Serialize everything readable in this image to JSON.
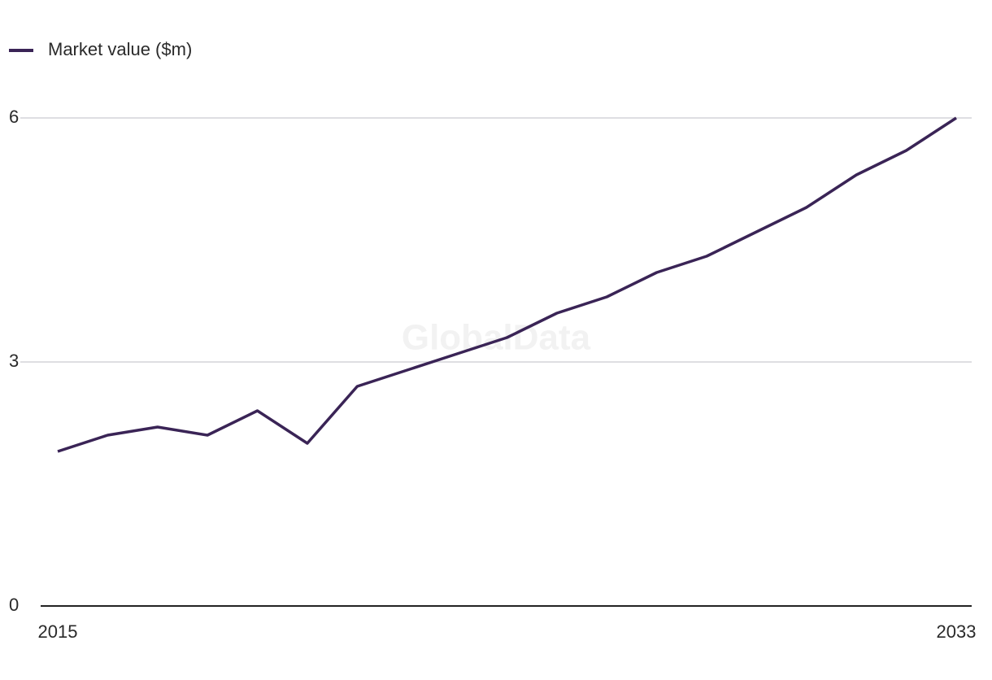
{
  "chart_data": {
    "type": "line",
    "watermark": "GlobalData",
    "x": [
      2015,
      2016,
      2017,
      2018,
      2019,
      2020,
      2021,
      2022,
      2023,
      2024,
      2025,
      2026,
      2027,
      2028,
      2029,
      2030,
      2031,
      2032,
      2033
    ],
    "series": [
      {
        "name": "Market value ($m)",
        "color": "#3a2456",
        "values": [
          1.9,
          2.1,
          2.2,
          2.1,
          2.4,
          2.0,
          2.7,
          2.9,
          3.1,
          3.3,
          3.6,
          3.8,
          4.1,
          4.3,
          4.6,
          4.9,
          5.3,
          5.6,
          6.0
        ]
      }
    ],
    "xlim": [
      2015,
      2033
    ],
    "xticks": [
      2015,
      2033
    ],
    "ylim": [
      0,
      6
    ],
    "yticks": [
      0,
      3,
      6
    ],
    "grid": true,
    "legend": "top-left"
  }
}
